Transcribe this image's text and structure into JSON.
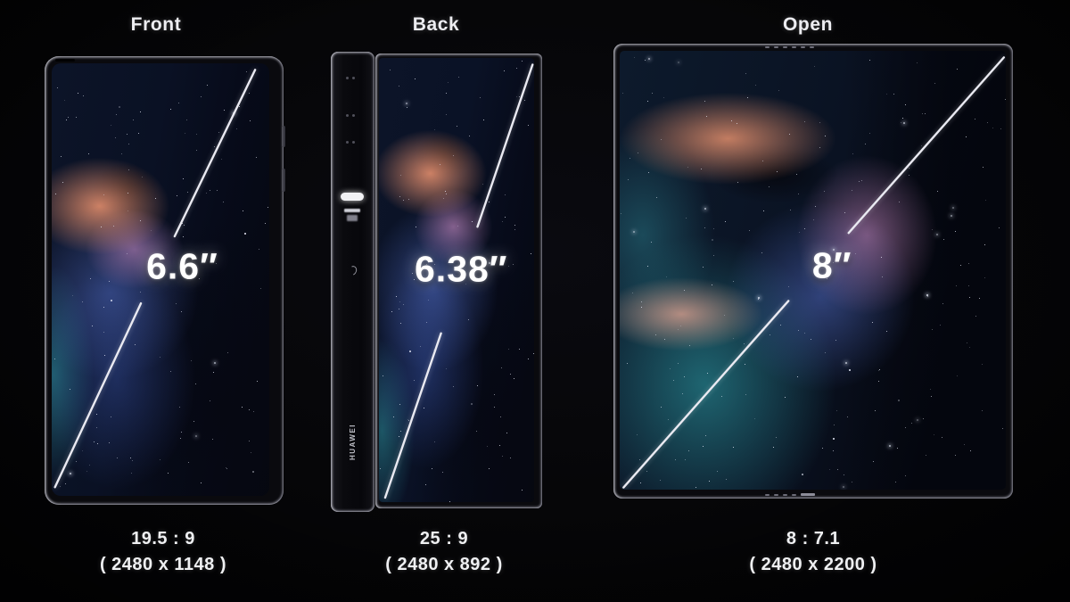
{
  "colors": {
    "background": "#050507",
    "text": "#eff0f2",
    "measure_line": "#eaeaf2",
    "size_label": "#ffffff"
  },
  "panels": [
    {
      "id": "front",
      "label": "Front",
      "size_label": "6.6″",
      "aspect_ratio": "19.5 : 9",
      "resolution": "( 2480 x 1148 )"
    },
    {
      "id": "back",
      "label": "Back",
      "size_label": "6.38″",
      "aspect_ratio": "25 : 9",
      "resolution": "( 2480 x 892 )",
      "brand_text": "HUAWEI"
    },
    {
      "id": "open",
      "label": "Open",
      "size_label": "8″",
      "aspect_ratio": "8 : 7.1",
      "resolution": "( 2480 x 2200 )"
    }
  ]
}
